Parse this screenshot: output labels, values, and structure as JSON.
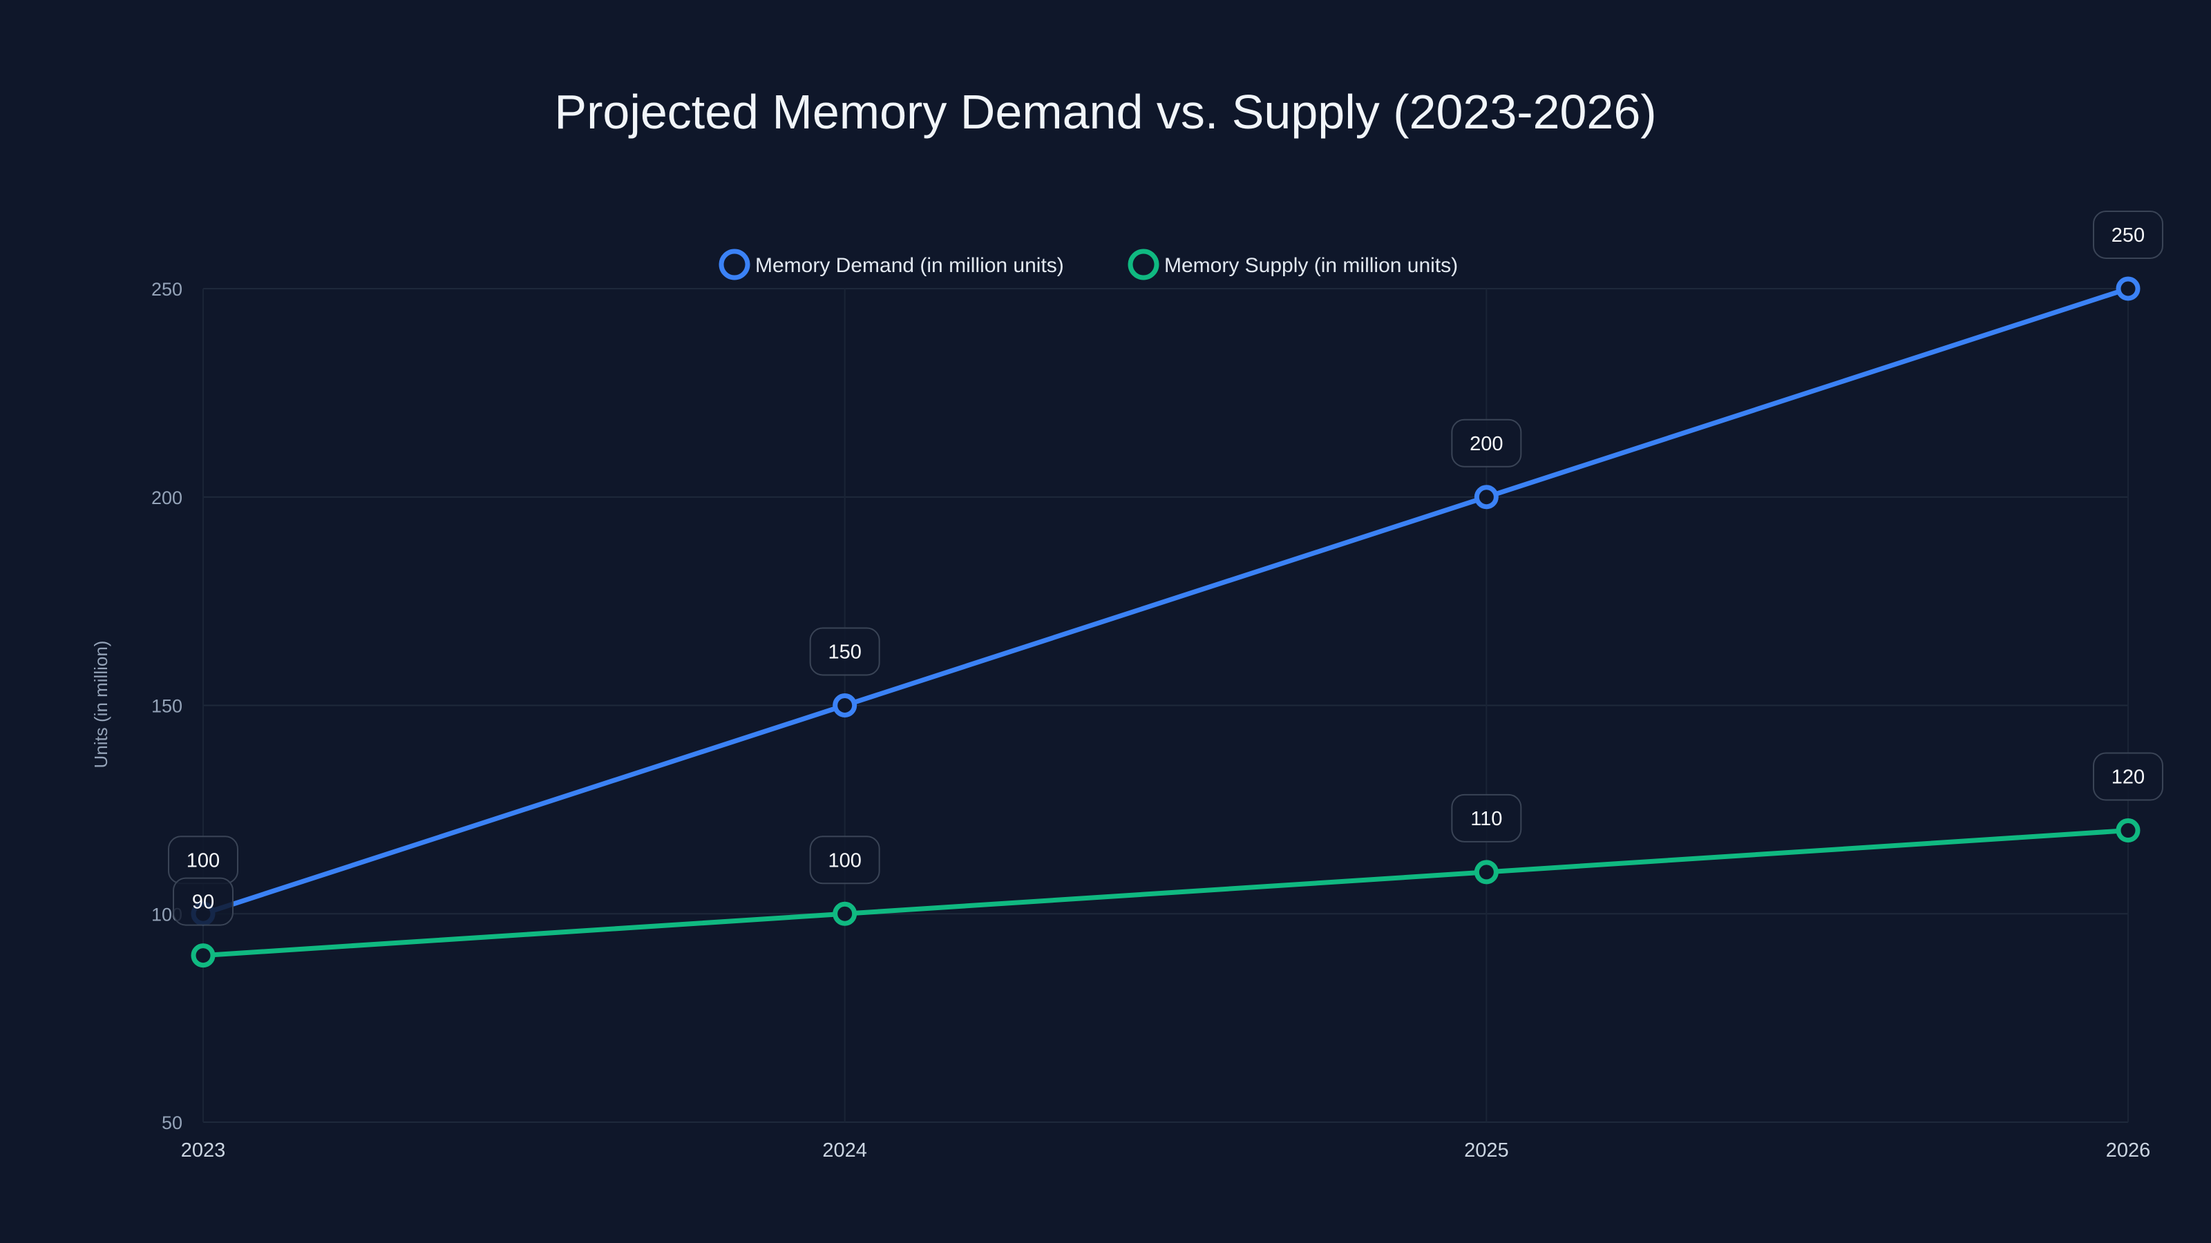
{
  "chart_data": {
    "type": "line",
    "title": "Projected Memory Demand vs. Supply (2023-2026)",
    "xlabel": "",
    "ylabel": "Units (in million)",
    "categories": [
      "2023",
      "2024",
      "2025",
      "2026"
    ],
    "yticks": [
      50,
      100,
      150,
      200,
      250
    ],
    "ylim": [
      50,
      250
    ],
    "grid": true,
    "legend_position": "top-center",
    "series": [
      {
        "name": "Memory Demand (in million units)",
        "color": "#3b82f6",
        "values": [
          100,
          150,
          200,
          250
        ]
      },
      {
        "name": "Memory Supply (in million units)",
        "color": "#10b981",
        "values": [
          90,
          100,
          110,
          120
        ]
      }
    ]
  }
}
